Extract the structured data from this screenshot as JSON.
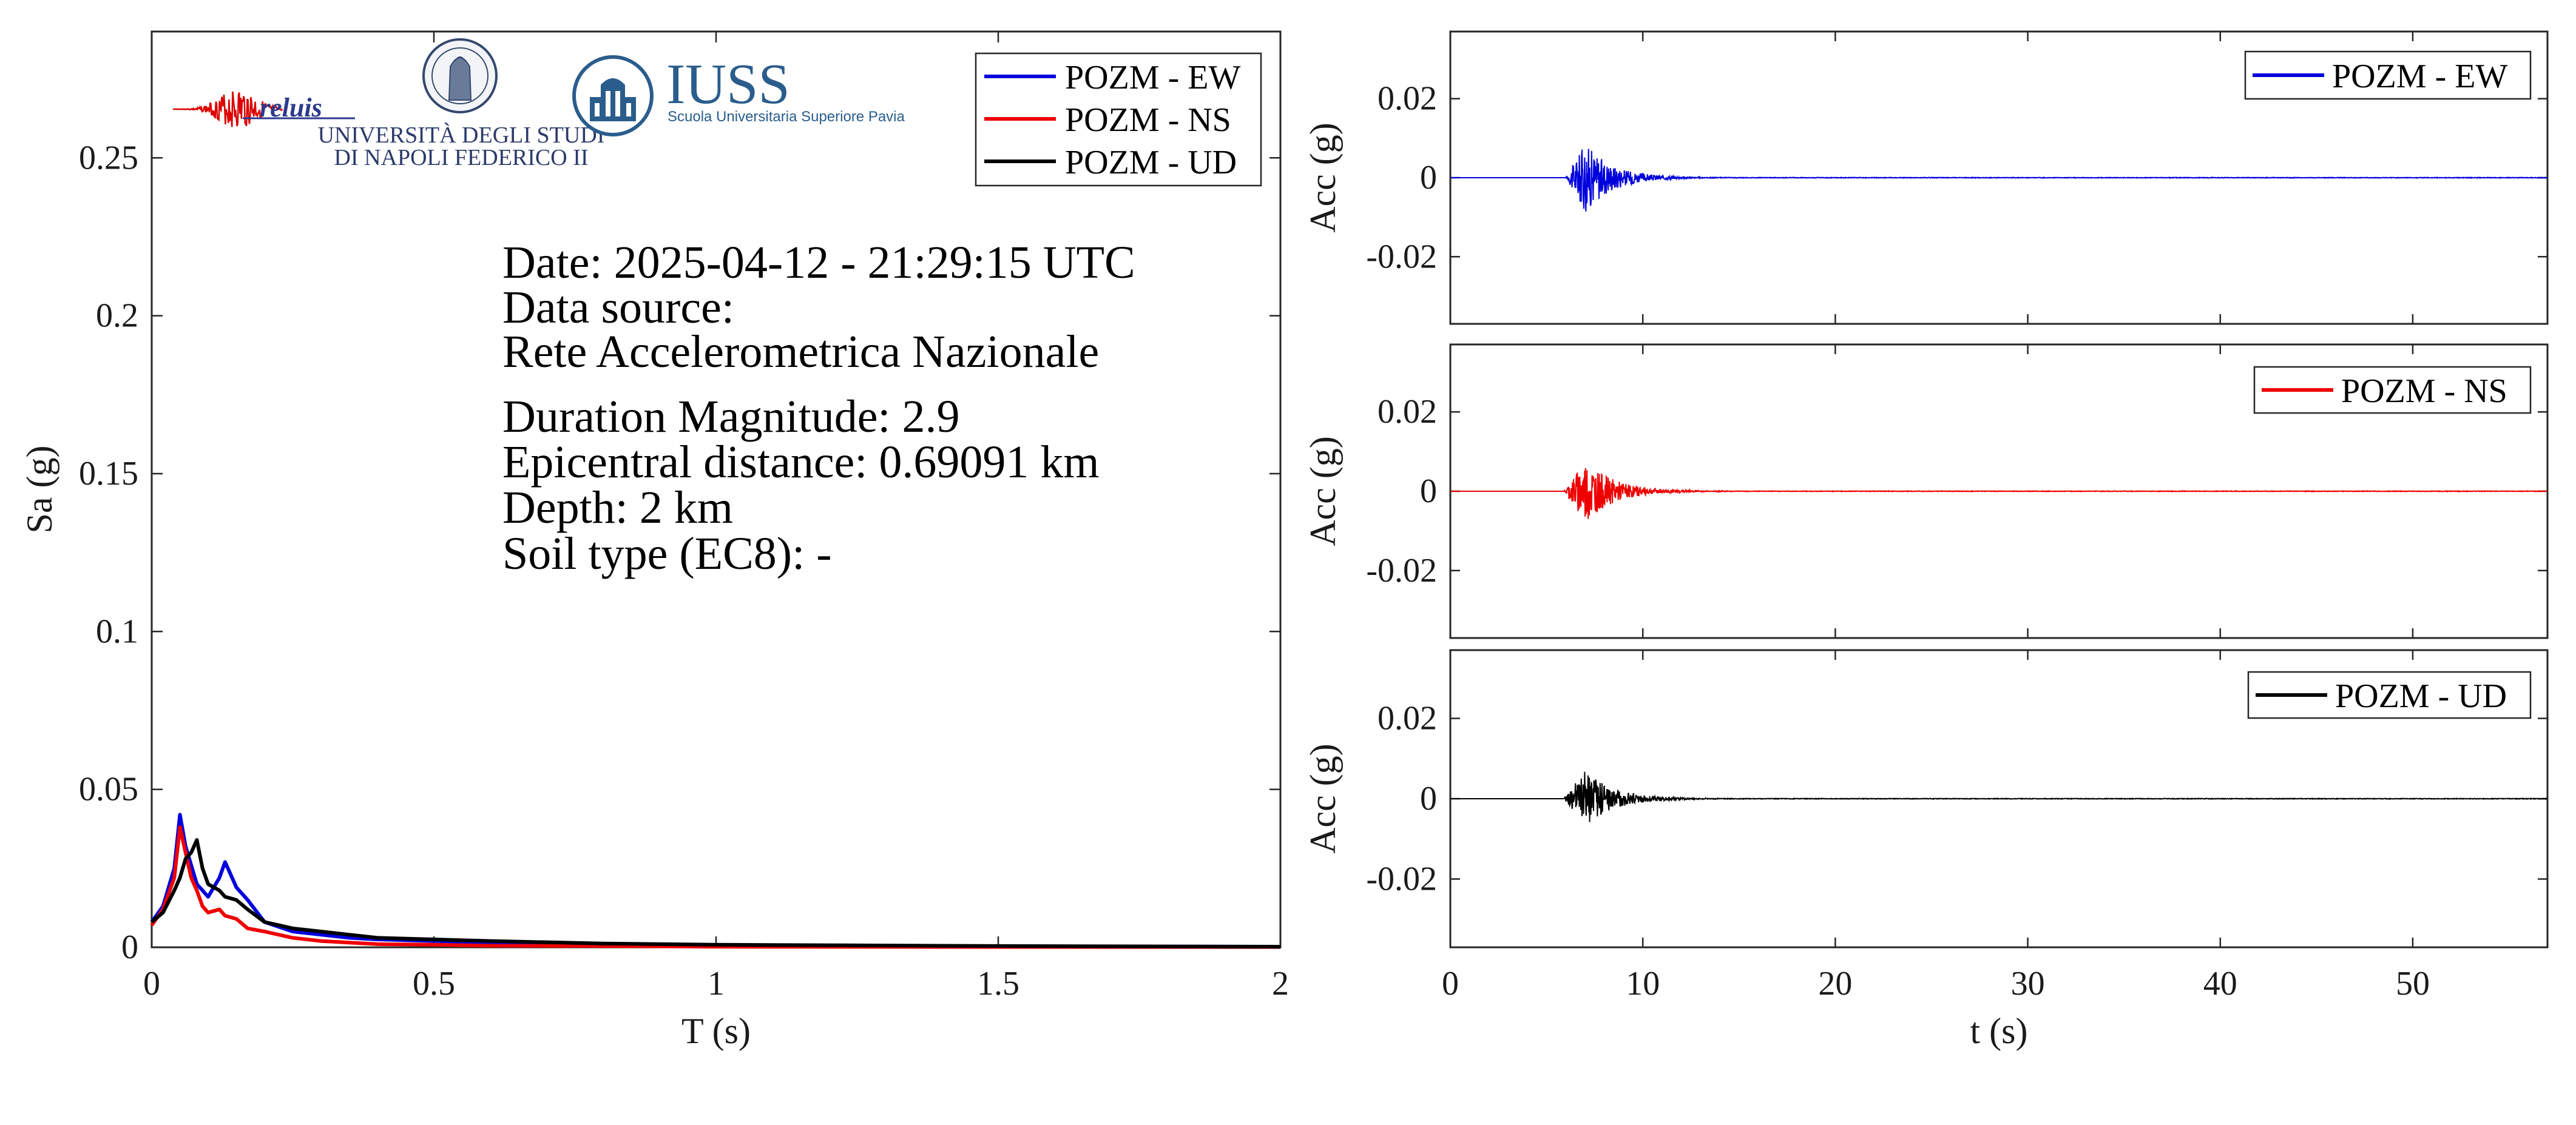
{
  "colors": {
    "ew": "#0000dd",
    "ns": "#ee0000",
    "ud": "#000000",
    "iuss": "#2a5d8c",
    "reluis": "#2b3a8c"
  },
  "logos": {
    "reluis": "reluis",
    "unina_line1": "UNIVERSITÀ DEGLI STUDI",
    "unina_line2": "DI NAPOLI FEDERICO II",
    "iuss_title": "IUSS",
    "iuss_subtitle": "Scuola Universitaria Superiore Pavia"
  },
  "info": {
    "date": "Date: 2025-04-12 - 21:29:15 UTC",
    "source_label": "Data source:",
    "source": "Rete Accelerometrica Nazionale",
    "magnitude": "Duration Magnitude: 2.9",
    "distance": "Epicentral distance: 0.69091 km",
    "depth": "Depth: 2 km",
    "soil": "Soil type (EC8): -"
  },
  "chart_data": [
    {
      "type": "line",
      "xlabel": "T (s)",
      "ylabel": "Sa (g)",
      "xlim": [
        0,
        2
      ],
      "ylim": [
        0,
        0.29
      ],
      "xticks": [
        "0",
        "0.5",
        "1",
        "1.5",
        "2"
      ],
      "yticks": [
        "0",
        "0.05",
        "0.1",
        "0.15",
        "0.2",
        "0.25"
      ],
      "legend_position": "top-right",
      "x": [
        0,
        0.02,
        0.04,
        0.05,
        0.06,
        0.07,
        0.08,
        0.09,
        0.1,
        0.12,
        0.13,
        0.15,
        0.17,
        0.2,
        0.25,
        0.3,
        0.35,
        0.4,
        0.5,
        0.6,
        0.8,
        1.0,
        1.5,
        2.0
      ],
      "series": [
        {
          "name": "POZM - EW",
          "values": [
            0.008,
            0.013,
            0.025,
            0.042,
            0.032,
            0.026,
            0.02,
            0.018,
            0.016,
            0.022,
            0.027,
            0.019,
            0.015,
            0.008,
            0.005,
            0.004,
            0.003,
            0.0025,
            0.002,
            0.0015,
            0.001,
            0.0006,
            0.0003,
            0.0002
          ]
        },
        {
          "name": "POZM - NS",
          "values": [
            0.007,
            0.012,
            0.022,
            0.038,
            0.03,
            0.022,
            0.018,
            0.013,
            0.011,
            0.012,
            0.01,
            0.009,
            0.006,
            0.005,
            0.003,
            0.002,
            0.0015,
            0.001,
            0.0008,
            0.0005,
            0.0004,
            0.0002,
            0.0001,
            0.0001
          ]
        },
        {
          "name": "POZM - UD",
          "values": [
            0.008,
            0.011,
            0.018,
            0.022,
            0.028,
            0.03,
            0.034,
            0.025,
            0.02,
            0.018,
            0.016,
            0.015,
            0.012,
            0.008,
            0.006,
            0.005,
            0.004,
            0.003,
            0.0025,
            0.002,
            0.0012,
            0.0008,
            0.0004,
            0.0002
          ]
        }
      ]
    },
    {
      "type": "line",
      "ylabel": "Acc (g)",
      "xlim": [
        0,
        57
      ],
      "ylim": [
        -0.037,
        0.037
      ],
      "yticks": [
        "0.02",
        "0",
        "-0.02"
      ],
      "legend_position": "top-right",
      "series": [
        {
          "name": "POZM - EW",
          "onset": 6,
          "peak_time": 7,
          "peak": 0.009,
          "decay": 1.4,
          "end": 57
        }
      ]
    },
    {
      "type": "line",
      "ylabel": "Acc (g)",
      "xlim": [
        0,
        57
      ],
      "ylim": [
        -0.037,
        0.037
      ],
      "yticks": [
        "0.02",
        "0",
        "-0.02"
      ],
      "legend_position": "top-right",
      "series": [
        {
          "name": "POZM - NS",
          "onset": 5.9,
          "peak_time": 7,
          "peak": 0.008,
          "decay": 1.5,
          "end": 57
        }
      ]
    },
    {
      "type": "line",
      "xlabel": "t (s)",
      "ylabel": "Acc (g)",
      "xlim": [
        0,
        57
      ],
      "ylim": [
        -0.037,
        0.037
      ],
      "xticks": [
        "0",
        "10",
        "20",
        "30",
        "40",
        "50"
      ],
      "yticks": [
        "0.02",
        "0",
        "-0.02"
      ],
      "legend_position": "top-right",
      "series": [
        {
          "name": "POZM - UD",
          "onset": 5.9,
          "peak_time": 7,
          "peak": 0.007,
          "decay": 1.5,
          "end": 57
        }
      ]
    }
  ]
}
